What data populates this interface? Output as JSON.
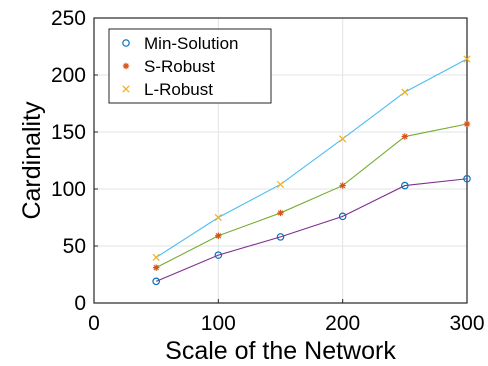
{
  "chart_data": {
    "type": "line",
    "title": "",
    "xlabel": "Scale of the Network",
    "ylabel": "Cardinality",
    "xlim": [
      0,
      300
    ],
    "ylim": [
      0,
      250
    ],
    "xticks": [
      0,
      100,
      200,
      300
    ],
    "yticks": [
      0,
      50,
      100,
      150,
      200,
      250
    ],
    "grid": true,
    "legend": {
      "placement": "top-left",
      "boxed": true
    },
    "x": [
      50,
      100,
      150,
      200,
      250,
      300
    ],
    "series": [
      {
        "name": "Min-Solution",
        "marker": "circle",
        "marker_color": "#0072BD",
        "line_color": "#7E2F8E",
        "values": [
          19,
          42,
          58,
          76,
          103,
          109
        ]
      },
      {
        "name": "S-Robust",
        "marker": "asterisk",
        "marker_color": "#D95319",
        "line_color": "#77AC30",
        "values": [
          31,
          59,
          79,
          103,
          146,
          157
        ]
      },
      {
        "name": "L-Robust",
        "marker": "x",
        "marker_color": "#EDB120",
        "line_color": "#4DBEEE",
        "values": [
          40,
          75,
          104,
          144,
          185,
          214
        ]
      }
    ]
  }
}
